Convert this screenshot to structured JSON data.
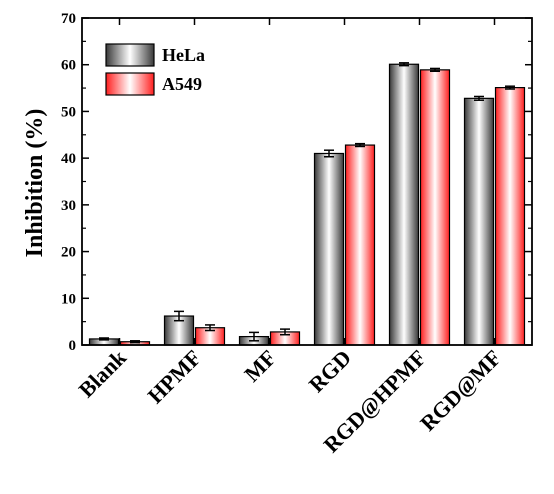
{
  "chart_data": {
    "type": "bar",
    "categories": [
      "Blank",
      "HPMF",
      "MF",
      "RGD",
      "RGD@HPMF",
      "RGD@MF"
    ],
    "series": [
      {
        "name": "HeLa",
        "values": [
          1.3,
          6.2,
          1.8,
          41.0,
          60.1,
          52.8
        ],
        "errors": [
          0.2,
          1.0,
          0.9,
          0.7,
          0.3,
          0.4
        ],
        "color": "#555555"
      },
      {
        "name": "A549",
        "values": [
          0.7,
          3.7,
          2.8,
          42.8,
          58.9,
          55.1
        ],
        "errors": [
          0.2,
          0.6,
          0.6,
          0.3,
          0.3,
          0.3
        ],
        "color": "#ff2a2a"
      }
    ],
    "ylabel": "Inhibition (%)",
    "xlabel": "",
    "ylim": [
      0,
      70
    ],
    "yticks": [
      "0",
      "10",
      "20",
      "30",
      "40",
      "50",
      "60",
      "70"
    ],
    "grid": false,
    "legend_position": "top-left"
  }
}
